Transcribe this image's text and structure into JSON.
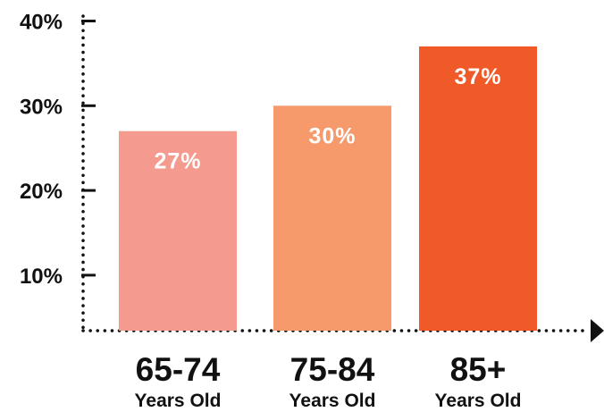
{
  "chart_data": {
    "type": "bar",
    "categories": [
      "65-74",
      "75-84",
      "85+"
    ],
    "category_sublabels": [
      "Years Old",
      "Years Old",
      "Years Old"
    ],
    "values": [
      27,
      30,
      37
    ],
    "data_labels": [
      "27%",
      "30%",
      "37%"
    ],
    "colors": [
      "#F59A8E",
      "#F69A6B",
      "#F05A28"
    ],
    "yticks": [
      10,
      20,
      30,
      40
    ],
    "ytick_labels": [
      "10%",
      "20%",
      "30%",
      "40%"
    ],
    "ylim": [
      0,
      40
    ],
    "grid": false,
    "legend": "none"
  }
}
